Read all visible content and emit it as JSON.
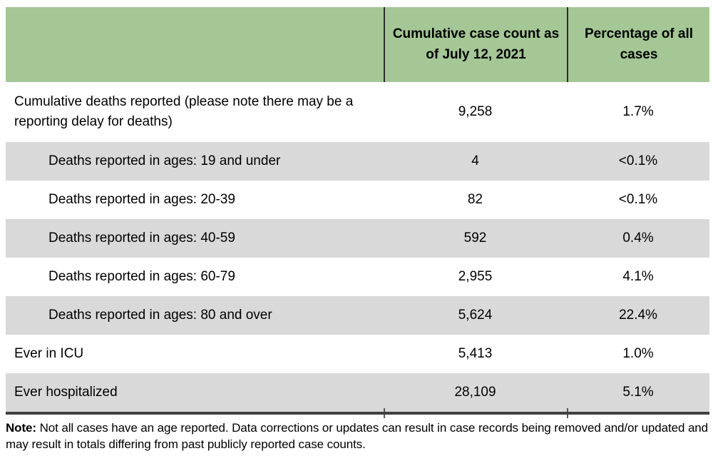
{
  "colors": {
    "header_green": "#a4c795",
    "row_gray": "#d9d9d9",
    "border_dark": "#404040",
    "text": "#000000"
  },
  "table": {
    "header": {
      "case_count": "Cumulative case count as of July 12, 2021",
      "percentage": "Percentage of all cases"
    },
    "rows": [
      {
        "label": "Cumulative deaths reported (please note there may be a reporting delay for deaths)",
        "count": "9,258",
        "percentage": "1.7%"
      },
      {
        "label": "Deaths reported in ages: 19 and under",
        "count": "4",
        "percentage": "<0.1%"
      },
      {
        "label": "Deaths reported in ages: 20-39",
        "count": "82",
        "percentage": "<0.1%"
      },
      {
        "label": "Deaths reported in ages: 40-59",
        "count": "592",
        "percentage": "0.4%"
      },
      {
        "label": "Deaths reported in ages: 60-79",
        "count": "2,955",
        "percentage": "4.1%"
      },
      {
        "label": "Deaths reported in ages: 80 and over",
        "count": "5,624",
        "percentage": "22.4%"
      },
      {
        "label": "Ever in ICU",
        "count": "5,413",
        "percentage": "1.0%"
      },
      {
        "label": "Ever hospitalized",
        "count": "28,109",
        "percentage": "5.1%"
      }
    ]
  },
  "note": {
    "bold": "Note:",
    "text": "Not all cases have an age reported. Data corrections or updates can result in case records being removed and/or updated and may result in totals differing from past publicly reported case counts."
  }
}
